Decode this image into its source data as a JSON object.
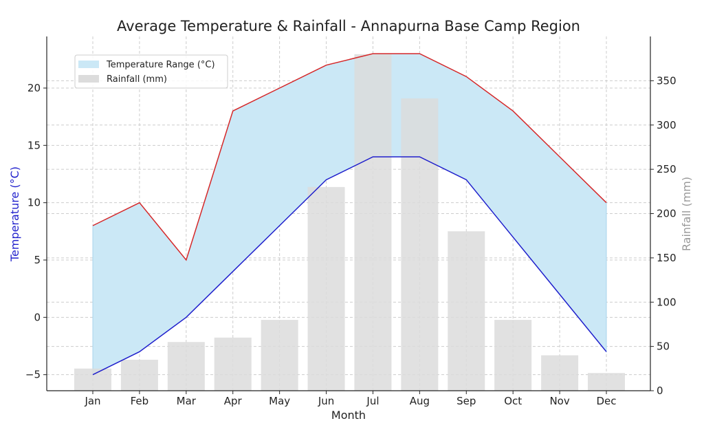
{
  "chart_data": {
    "type": "bar+area+line",
    "title": "Average Temperature & Rainfall - Annapurna Base Camp Region",
    "xlabel": "Month",
    "ylabel_left": "Temperature (°C)",
    "ylabel_right": "Rainfall (mm)",
    "categories": [
      "Jan",
      "Feb",
      "Mar",
      "Apr",
      "May",
      "Jun",
      "Jul",
      "Aug",
      "Sep",
      "Oct",
      "Nov",
      "Dec"
    ],
    "temperature_high": [
      8,
      10,
      5,
      18,
      20,
      22,
      23,
      23,
      21,
      18,
      14,
      10
    ],
    "temperature_low": [
      -5,
      -3,
      0,
      4,
      8,
      12,
      14,
      14,
      12,
      7,
      2,
      -3
    ],
    "rainfall": [
      25,
      35,
      55,
      60,
      80,
      230,
      380,
      330,
      180,
      80,
      40,
      20
    ],
    "ylim_left": [
      -6.4,
      24.5
    ],
    "ylim_right": [
      0,
      400
    ],
    "yticks_left": [
      -5,
      0,
      5,
      10,
      15,
      20
    ],
    "yticks_right": [
      0,
      50,
      100,
      150,
      200,
      250,
      300,
      350
    ],
    "grid": true,
    "legend": {
      "placement": "top-left",
      "entries": [
        "Temperature Range (°C)",
        "Rainfall (mm)"
      ]
    },
    "colors": {
      "range_fill": "#cbe8f6",
      "high_line": "#d62728",
      "low_line": "#1f1fcc",
      "bars": "#dcdcdc",
      "left_label": "#1f1fcc",
      "right_label": "#999999"
    }
  }
}
